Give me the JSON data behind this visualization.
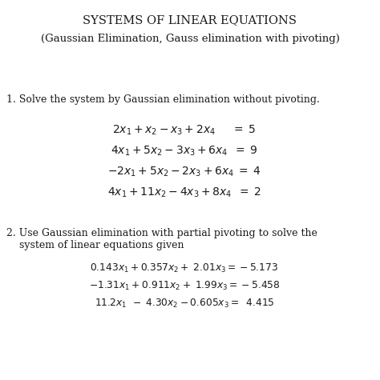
{
  "bg_color": "#ffffff",
  "title": "SYSTEMS OF LINEAR EQUATIONS",
  "subtitle": "(Gaussian Elimination, Gauss elimination with pivoting)",
  "problem1_label": "1. Solve the system by Gaussian elimination without pivoting.",
  "problem2_label_line1": "2. Use Gaussian elimination with partial pivoting to solve the",
  "problem2_label_line2": "    system of linear equations given",
  "title_fontsize": 10.5,
  "subtitle_fontsize": 9.5,
  "body_fontsize": 9.0,
  "eq1_fontsize": 10.0,
  "eq2_fontsize": 8.8
}
